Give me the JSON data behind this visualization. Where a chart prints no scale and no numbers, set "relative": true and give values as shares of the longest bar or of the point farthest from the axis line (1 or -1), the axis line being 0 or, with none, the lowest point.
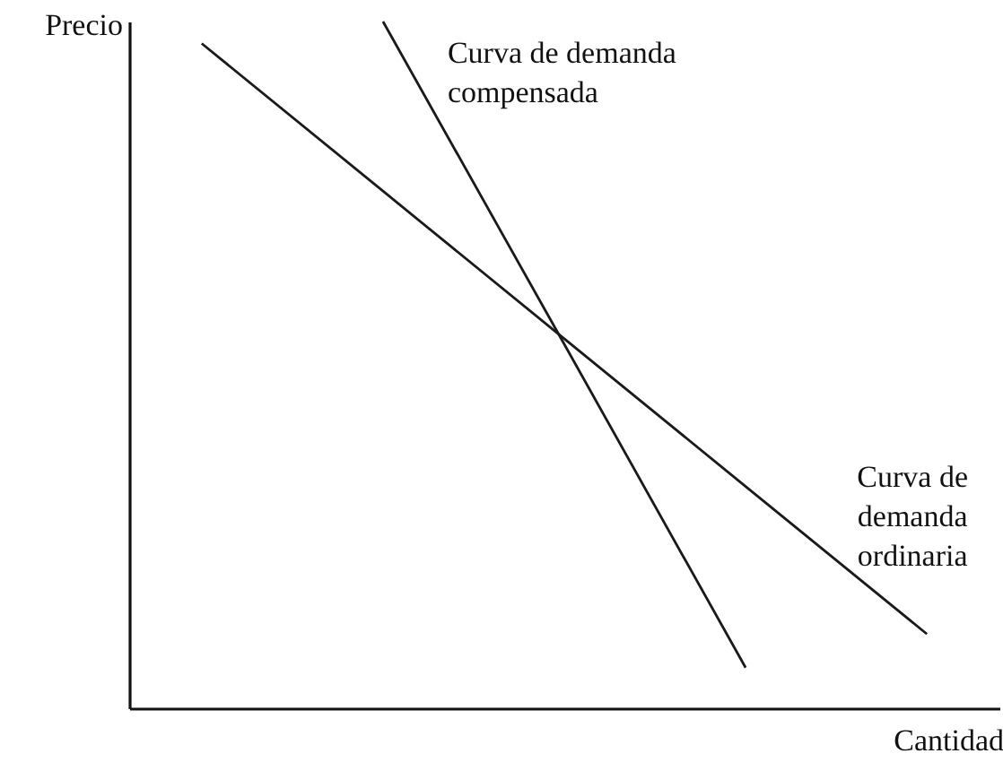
{
  "chart_data": {
    "type": "line",
    "xlabel": "Cantidad",
    "ylabel": "Precio",
    "relative": true,
    "line_style": "solid",
    "marker": "none",
    "categories": [
      null,
      null,
      null,
      null,
      null
    ],
    "series": [
      {
        "name": "Curva de demanda\ncompensada",
        "color": "#1a1a1a",
        "values": [
          null,
          1,
          0.53,
          0.059,
          null
        ]
      },
      {
        "name": "Curva de\ndemanda\nordinaria",
        "color": "#1a1a1a",
        "values": [
          0.968,
          0.753,
          0.538,
          0.323,
          0.108
        ]
      }
    ]
  }
}
